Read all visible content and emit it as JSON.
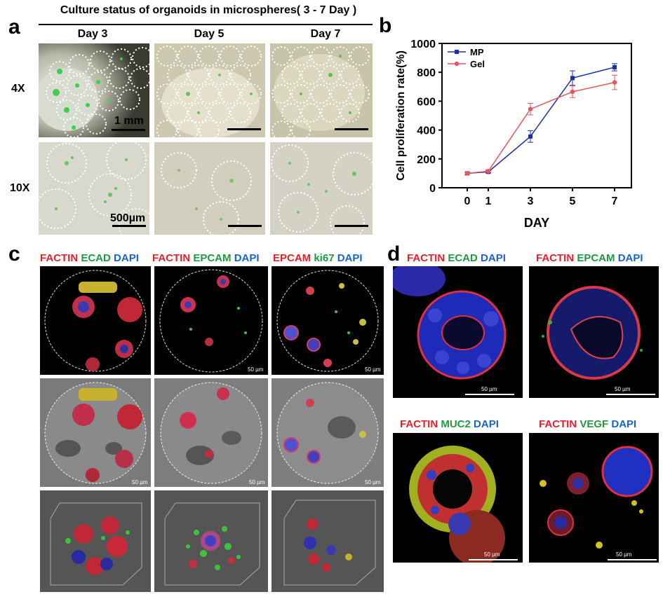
{
  "panel_a": {
    "letter": "a",
    "title": "Culture status of organoids in microspheres( 3 - 7 Day )",
    "columns": [
      "Day 3",
      "Day 5",
      "Day 7"
    ],
    "rows": [
      "4X",
      "10X"
    ],
    "scale_4x": "1 mm",
    "scale_10x": "500µm"
  },
  "panel_b": {
    "letter": "b"
  },
  "panel_c": {
    "letter": "c",
    "stains": [
      [
        {
          "t": "FACTIN",
          "c": "red"
        },
        {
          "t": "ECAD",
          "c": "green"
        },
        {
          "t": "DAPI",
          "c": "blue"
        }
      ],
      [
        {
          "t": "FACTIN",
          "c": "red"
        },
        {
          "t": "EPCAM",
          "c": "green"
        },
        {
          "t": "DAPI",
          "c": "blue"
        }
      ],
      [
        {
          "t": "EPCAM",
          "c": "red"
        },
        {
          "t": "ki67",
          "c": "green"
        },
        {
          "t": "DAPI",
          "c": "blue"
        }
      ]
    ],
    "scale": "50 µm"
  },
  "panel_d": {
    "letter": "d",
    "stains": [
      [
        {
          "t": "FACTIN",
          "c": "red"
        },
        {
          "t": "ECAD",
          "c": "green"
        },
        {
          "t": "DAPI",
          "c": "blue"
        }
      ],
      [
        {
          "t": "FACTIN",
          "c": "red"
        },
        {
          "t": "EPCAM",
          "c": "green"
        },
        {
          "t": "DAPI",
          "c": "blue"
        }
      ],
      [
        {
          "t": "FACTIN",
          "c": "red"
        },
        {
          "t": "MUC2",
          "c": "green"
        },
        {
          "t": "DAPI",
          "c": "blue"
        }
      ],
      [
        {
          "t": "FACTIN",
          "c": "red"
        },
        {
          "t": "VEGF",
          "c": "green"
        },
        {
          "t": "DAPI",
          "c": "blue"
        }
      ]
    ],
    "scale": "50 µm"
  },
  "colors": {
    "mp": "#1a2fa8",
    "gel": "#e8555a",
    "stain_red": "#e8202a",
    "stain_green": "#1f9a3d",
    "stain_blue": "#1a64c8"
  },
  "chart_data": {
    "type": "line",
    "x": [
      0,
      1,
      3,
      5,
      7
    ],
    "categories": [
      "0",
      "1",
      "3",
      "5",
      "7"
    ],
    "xlabel": "DAY",
    "ylabel": "Cell proliferation rate(%)",
    "ylim": [
      0,
      1000
    ],
    "yticks": [
      0,
      200,
      400,
      600,
      800,
      1000
    ],
    "legend_position": "top-left",
    "series": [
      {
        "name": "MP",
        "values": [
          100,
          110,
          355,
          760,
          835
        ],
        "errors": [
          8,
          8,
          40,
          50,
          25
        ]
      },
      {
        "name": "Gel",
        "values": [
          100,
          115,
          545,
          665,
          730
        ],
        "errors": [
          8,
          8,
          40,
          40,
          50
        ]
      }
    ]
  }
}
